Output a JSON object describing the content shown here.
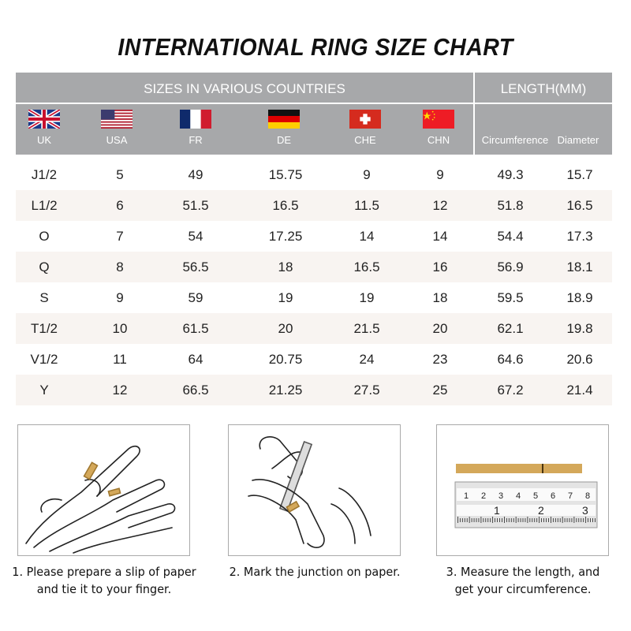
{
  "title": "INTERNATIONAL RING SIZE CHART",
  "header": {
    "sizes_label": "SIZES IN VARIOUS COUNTRIES",
    "length_label": "LENGTH(MM)",
    "countries": [
      {
        "code": "UK",
        "flag": "uk-flag"
      },
      {
        "code": "USA",
        "flag": "usa-flag"
      },
      {
        "code": "FR",
        "flag": "france-flag"
      },
      {
        "code": "DE",
        "flag": "germany-flag"
      },
      {
        "code": "CHE",
        "flag": "switzerland-flag"
      },
      {
        "code": "CHN",
        "flag": "china-flag"
      }
    ],
    "length_columns": [
      "Circumference",
      "Diameter"
    ]
  },
  "rows": [
    [
      "J1/2",
      "5",
      "49",
      "15.75",
      "9",
      "9",
      "49.3",
      "15.7"
    ],
    [
      "L1/2",
      "6",
      "51.5",
      "16.5",
      "11.5",
      "12",
      "51.8",
      "16.5"
    ],
    [
      "O",
      "7",
      "54",
      "17.25",
      "14",
      "14",
      "54.4",
      "17.3"
    ],
    [
      "Q",
      "8",
      "56.5",
      "18",
      "16.5",
      "16",
      "56.9",
      "18.1"
    ],
    [
      "S",
      "9",
      "59",
      "19",
      "19",
      "18",
      "59.5",
      "18.9"
    ],
    [
      "T1/2",
      "10",
      "61.5",
      "20",
      "21.5",
      "20",
      "62.1",
      "19.8"
    ],
    [
      "V1/2",
      "11",
      "64",
      "20.75",
      "24",
      "23",
      "64.6",
      "20.6"
    ],
    [
      "Y",
      "12",
      "66.5",
      "21.25",
      "27.5",
      "25",
      "67.2",
      "21.4"
    ]
  ],
  "colors": {
    "header_bg": "#a7a8aa",
    "alt_row": "#f8f4f1",
    "paper_strip": "#d4a85a"
  },
  "steps": [
    {
      "line1": "1. Please prepare a slip of paper",
      "line2": "and tie it to your finger."
    },
    {
      "line1": "2. Mark the junction on paper.",
      "line2": ""
    },
    {
      "line1": "3. Measure the length, and",
      "line2": "get your circumference."
    }
  ],
  "ruler": {
    "cm_marks": [
      "1",
      "2",
      "3",
      "4",
      "5",
      "6",
      "7",
      "8"
    ],
    "inch_marks": [
      "1",
      "2",
      "3"
    ]
  }
}
